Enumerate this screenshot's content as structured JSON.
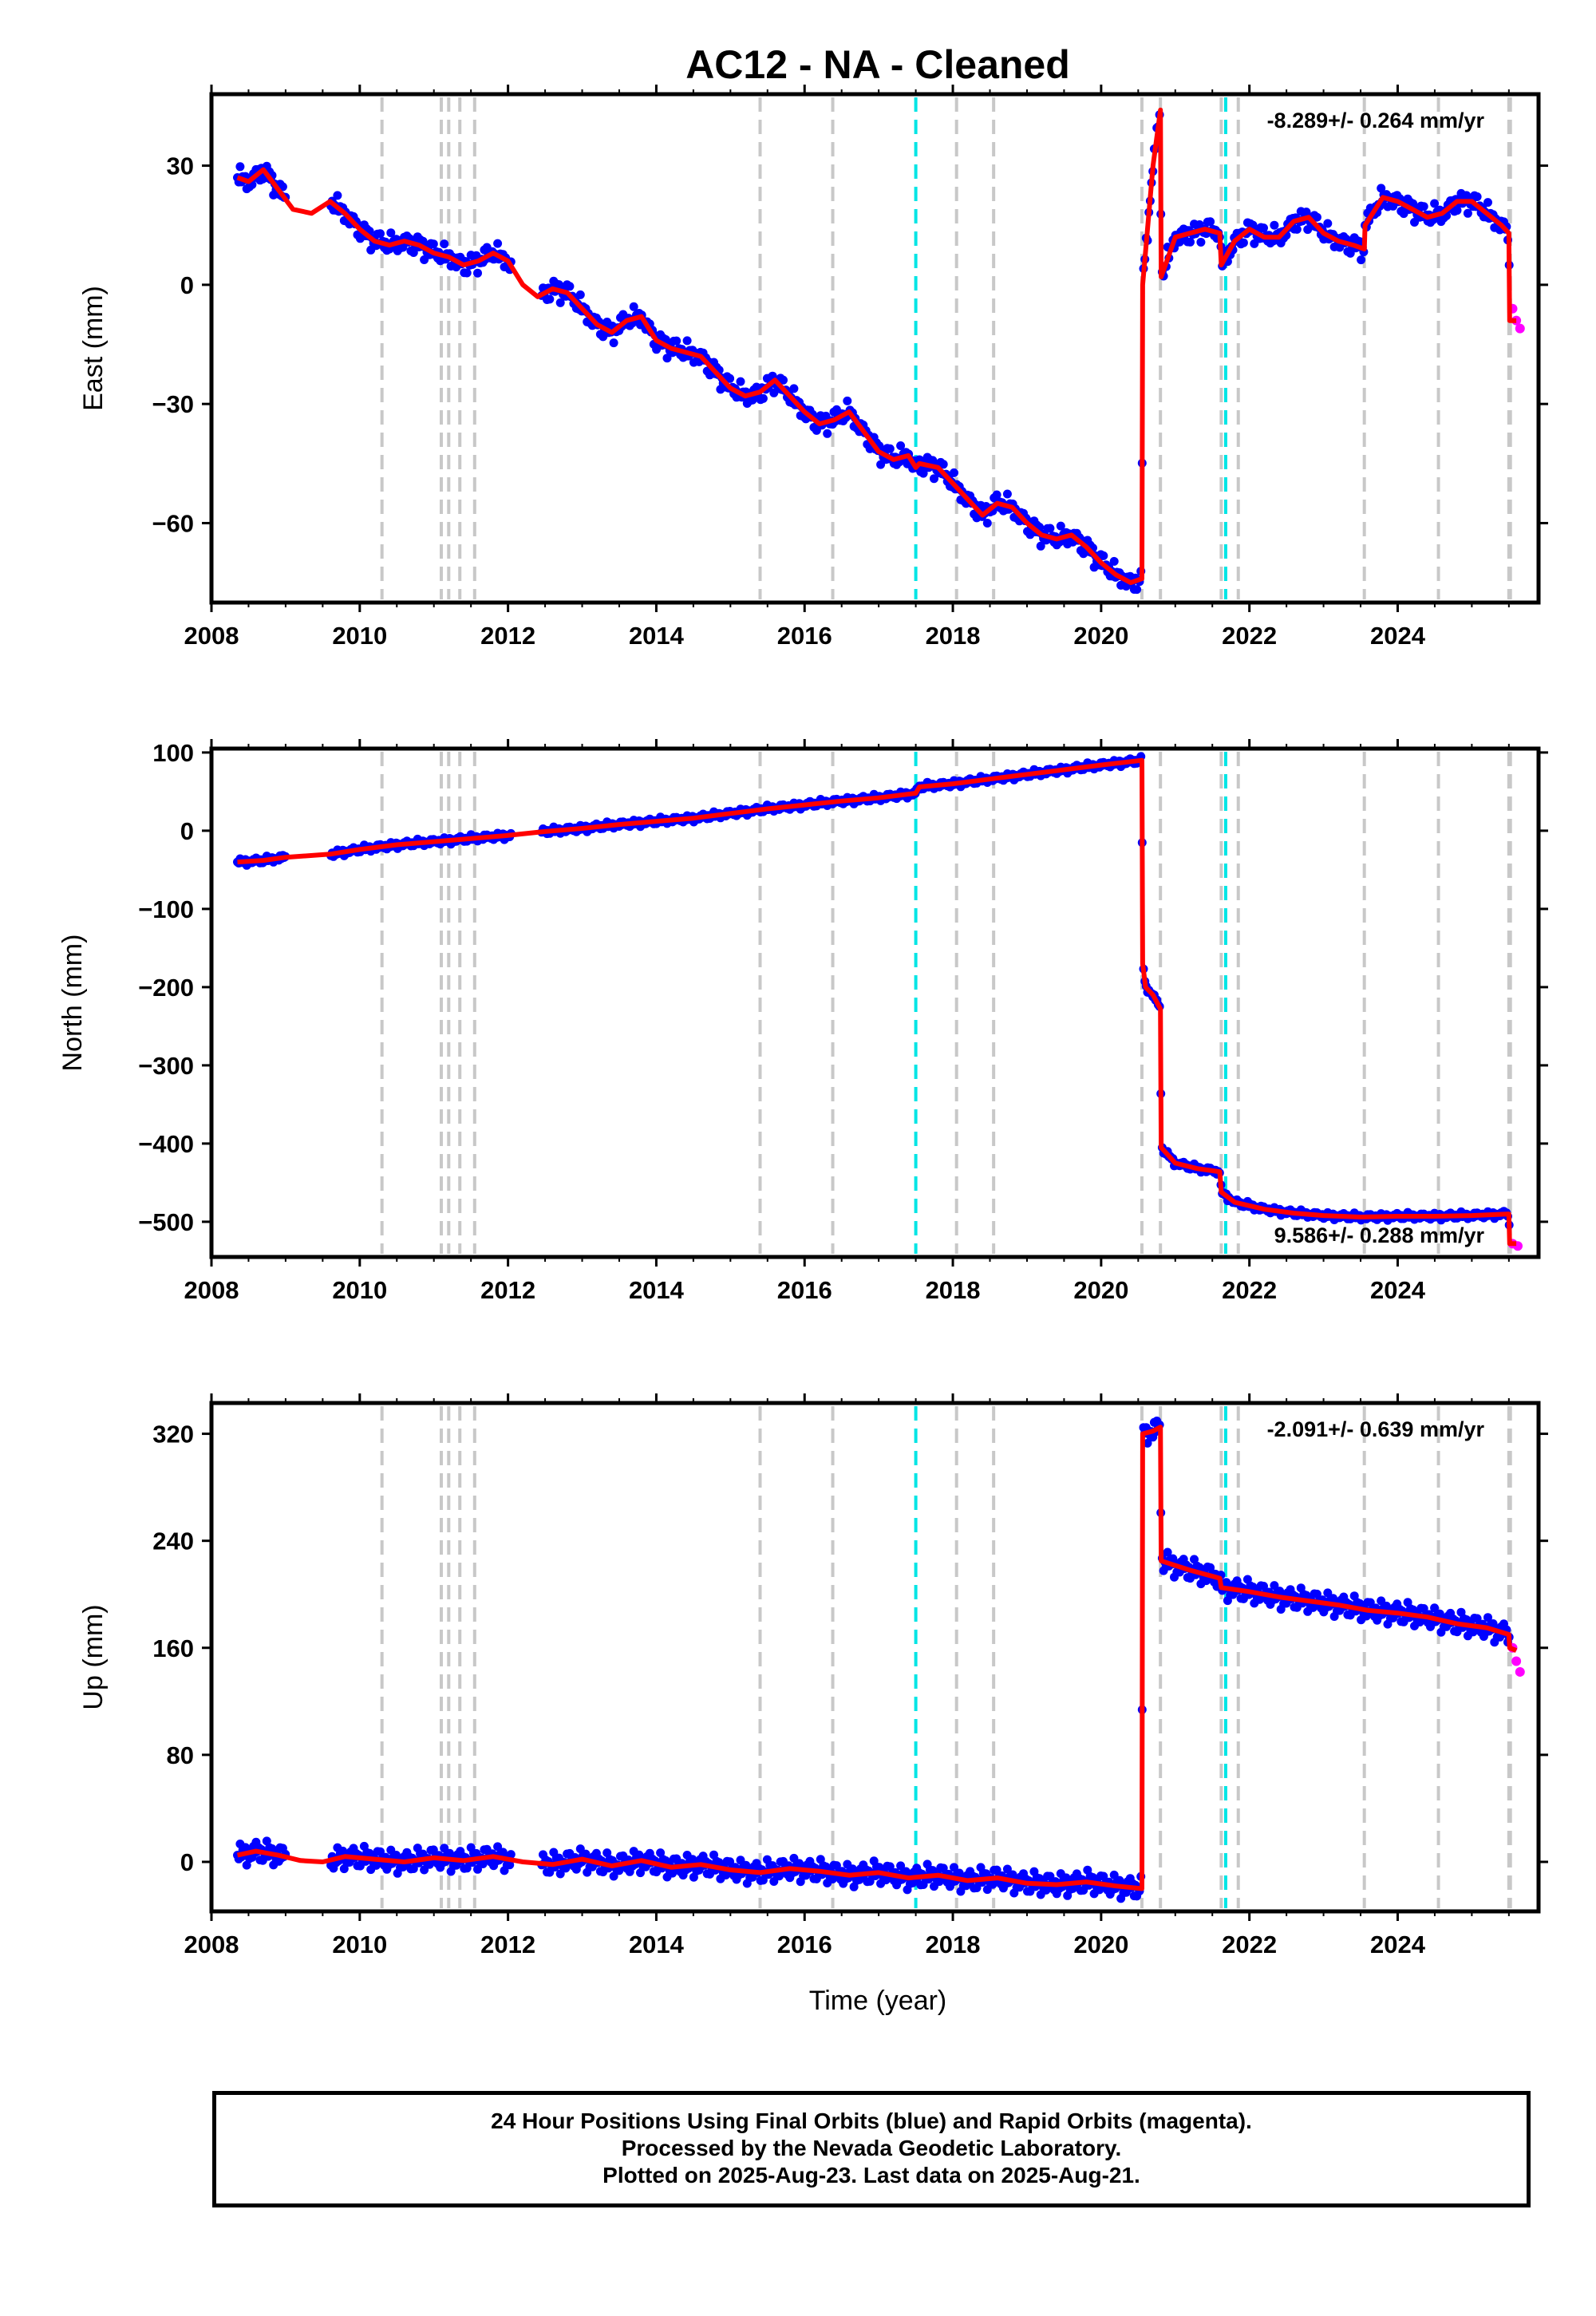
{
  "title": "AC12  - NA - Cleaned",
  "xlabel": "Time (year)",
  "caption": {
    "line1": "24 Hour Positions Using Final Orbits (blue) and Rapid Orbits (magenta).",
    "line2": "Processed by the Nevada Geodetic Laboratory.",
    "line3": "Plotted on 2025-Aug-23. Last data on 2025-Aug-21."
  },
  "colors": {
    "final_orbits": "#0000ff",
    "rapid_orbits": "#ff00ff",
    "model": "#ff0000",
    "event_line": "#c8c8c8",
    "equipment_change": "#00e5e5"
  },
  "chart_data": [
    {
      "type": "scatter",
      "ylabel": "East (mm)",
      "rate_label": "-8.289+/- 0.264 mm/yr",
      "xlim": [
        2008,
        2025.9
      ],
      "ylim": [
        -80,
        48
      ],
      "xticks": [
        "2008",
        "2010",
        "2012",
        "2014",
        "2016",
        "2018",
        "2020",
        "2022",
        "2024"
      ],
      "yticks": [
        "30",
        "0",
        "−30",
        "−60"
      ],
      "ytick_values": [
        30,
        0,
        -30,
        -60
      ],
      "model": {
        "x": [
          2008.35,
          2008.5,
          2008.7,
          2008.9,
          2009.1,
          2009.35,
          2009.6,
          2009.8,
          2010.0,
          2010.2,
          2010.4,
          2010.6,
          2010.8,
          2011.0,
          2011.2,
          2011.4,
          2011.6,
          2011.8,
          2012.0,
          2012.2,
          2012.4,
          2012.6,
          2012.8,
          2013.0,
          2013.2,
          2013.4,
          2013.6,
          2013.8,
          2014.0,
          2014.2,
          2014.4,
          2014.6,
          2014.8,
          2015.0,
          2015.2,
          2015.4,
          2015.6,
          2015.8,
          2016.0,
          2016.2,
          2016.4,
          2016.6,
          2016.8,
          2017.0,
          2017.2,
          2017.4,
          2017.5,
          2017.55,
          2017.8,
          2018.0,
          2018.2,
          2018.4,
          2018.6,
          2018.8,
          2019.0,
          2019.2,
          2019.4,
          2019.6,
          2019.8,
          2020.0,
          2020.2,
          2020.4,
          2020.55,
          2020.56,
          2020.7,
          2020.8,
          2020.81,
          2021.0,
          2021.2,
          2021.4,
          2021.6,
          2021.62,
          2021.8,
          2022.0,
          2022.2,
          2022.4,
          2022.6,
          2022.8,
          2023.0,
          2023.2,
          2023.4,
          2023.55,
          2023.56,
          2023.8,
          2024.0,
          2024.2,
          2024.4,
          2024.6,
          2024.8,
          2025.0,
          2025.2,
          2025.4,
          2025.5,
          2025.51,
          2025.6
        ],
        "y": [
          27,
          26,
          29,
          24,
          19,
          18,
          21,
          18,
          14,
          11,
          10,
          11,
          10,
          8,
          7,
          5,
          6,
          8,
          6,
          0,
          -3,
          -1,
          -2,
          -6,
          -10,
          -12,
          -9,
          -8,
          -14,
          -16,
          -17,
          -18,
          -22,
          -26,
          -28,
          -27,
          -24,
          -28,
          -32,
          -35,
          -34,
          -32,
          -37,
          -42,
          -44,
          -43,
          -46,
          -45,
          -46,
          -50,
          -54,
          -58,
          -55,
          -56,
          -60,
          -63,
          -64,
          -63,
          -66,
          -70,
          -73,
          -75,
          -74,
          0,
          30,
          44,
          2,
          12,
          13,
          14,
          13,
          5,
          11,
          14,
          12,
          12,
          16,
          17,
          13,
          11,
          10,
          9,
          15,
          22,
          21,
          19,
          17,
          18,
          21,
          21,
          18,
          15,
          13,
          -9,
          -9
        ]
      },
      "scatter_offsets": [
        2,
        -2,
        3,
        -3,
        1,
        -1,
        2,
        -2
      ],
      "rapid_orbits": {
        "x": [
          2025.55,
          2025.6,
          2025.65
        ],
        "y": [
          -6,
          -9,
          -11
        ]
      }
    },
    {
      "type": "scatter",
      "ylabel": "North (mm)",
      "rate_label": "9.586+/- 0.288 mm/yr",
      "xlim": [
        2008,
        2025.9
      ],
      "ylim": [
        -545,
        105
      ],
      "xticks": [
        "2008",
        "2010",
        "2012",
        "2014",
        "2016",
        "2018",
        "2020",
        "2022",
        "2024"
      ],
      "yticks": [
        "100",
        "0",
        "−100",
        "−200",
        "−300",
        "−400",
        "−500"
      ],
      "ytick_values": [
        100,
        0,
        -100,
        -200,
        -300,
        -400,
        -500
      ],
      "model": {
        "x": [
          2008.35,
          2008.7,
          2009.0,
          2009.6,
          2010.0,
          2010.5,
          2011.0,
          2011.5,
          2012.0,
          2012.5,
          2013.0,
          2013.5,
          2014.0,
          2014.5,
          2015.0,
          2015.5,
          2016.0,
          2016.5,
          2017.0,
          2017.5,
          2017.55,
          2018.0,
          2018.5,
          2019.0,
          2019.5,
          2020.0,
          2020.55,
          2020.56,
          2020.6,
          2020.7,
          2020.8,
          2020.81,
          2021.0,
          2021.3,
          2021.6,
          2021.62,
          2021.8,
          2022.2,
          2022.6,
          2023.0,
          2023.5,
          2024.0,
          2024.5,
          2025.0,
          2025.5,
          2025.51,
          2025.6
        ],
        "y": [
          -40,
          -38,
          -34,
          -30,
          -24,
          -18,
          -14,
          -10,
          -6,
          -1,
          3,
          8,
          12,
          16,
          22,
          28,
          33,
          38,
          42,
          48,
          56,
          60,
          66,
          72,
          78,
          84,
          90,
          -170,
          -200,
          -210,
          -228,
          -405,
          -425,
          -432,
          -436,
          -462,
          -475,
          -484,
          -489,
          -492,
          -494,
          -493,
          -493,
          -492,
          -490,
          -528,
          -528
        ]
      },
      "scatter_offsets": [
        3,
        -3,
        4,
        -4,
        2,
        -2,
        5,
        -5
      ],
      "rapid_orbits": {
        "x": [
          2025.55,
          2025.62
        ],
        "y": [
          -528,
          -531
        ]
      }
    },
    {
      "type": "scatter",
      "ylabel": "Up (mm)",
      "rate_label": "-2.091+/- 0.639 mm/yr",
      "xlim": [
        2008,
        2025.9
      ],
      "ylim": [
        -37,
        343
      ],
      "xticks": [
        "2008",
        "2010",
        "2012",
        "2014",
        "2016",
        "2018",
        "2020",
        "2022",
        "2024"
      ],
      "yticks": [
        "320",
        "240",
        "160",
        "80",
        "0"
      ],
      "ytick_values": [
        320,
        240,
        160,
        80,
        0
      ],
      "model": {
        "x": [
          2008.35,
          2008.6,
          2008.9,
          2009.2,
          2009.5,
          2009.8,
          2010.2,
          2010.6,
          2011.0,
          2011.4,
          2011.8,
          2012.2,
          2012.6,
          2013.0,
          2013.4,
          2013.8,
          2014.2,
          2014.6,
          2015.0,
          2015.4,
          2015.8,
          2016.2,
          2016.6,
          2017.0,
          2017.4,
          2017.8,
          2018.2,
          2018.6,
          2019.0,
          2019.4,
          2019.8,
          2020.2,
          2020.55,
          2020.56,
          2020.7,
          2020.8,
          2020.81,
          2021.2,
          2021.6,
          2021.62,
          2022.0,
          2022.4,
          2022.8,
          2023.2,
          2023.6,
          2024.0,
          2024.4,
          2024.8,
          2025.2,
          2025.5,
          2025.51,
          2025.6
        ],
        "y": [
          5,
          8,
          5,
          1,
          0,
          4,
          2,
          0,
          3,
          1,
          4,
          0,
          -2,
          2,
          -3,
          1,
          -4,
          -2,
          -6,
          -8,
          -5,
          -7,
          -10,
          -8,
          -12,
          -10,
          -14,
          -12,
          -16,
          -17,
          -15,
          -18,
          -20,
          320,
          322,
          325,
          225,
          218,
          212,
          205,
          202,
          198,
          195,
          192,
          188,
          186,
          183,
          178,
          175,
          170,
          160,
          158
        ]
      },
      "scatter_offsets": [
        6,
        -6,
        8,
        -8,
        4,
        -4,
        9,
        -9
      ],
      "rapid_orbits": {
        "x": [
          2025.55,
          2025.6,
          2025.65
        ],
        "y": [
          160,
          150,
          142
        ]
      }
    }
  ],
  "event_lines": [
    2010.3,
    2011.1,
    2011.2,
    2011.35,
    2011.55,
    2015.4,
    2016.38,
    2018.05,
    2018.55,
    2020.55,
    2020.8,
    2021.62,
    2021.85,
    2023.55,
    2024.55,
    2025.5,
    2025.52
  ],
  "equipment_changes": [
    2017.5,
    2021.68
  ]
}
